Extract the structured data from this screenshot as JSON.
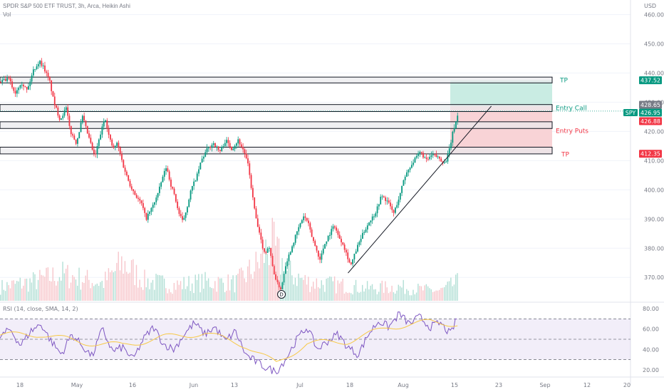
{
  "header": {
    "symbol_line": "SPDR S&P 500 ETF TRUST, 3h, Arca, Heikin Ashi",
    "volume_label": "Vol",
    "currency": "USD"
  },
  "price_axis": {
    "ticks": [
      "460.00",
      "450.00",
      "440.00",
      "430.00",
      "420.00",
      "410.00",
      "400.00",
      "390.00",
      "380.00",
      "370.00"
    ],
    "min": 362,
    "max": 465
  },
  "price_tags": [
    {
      "name": "tp-upper-price-tag",
      "text": "437.52",
      "value": 437.52,
      "color": "#089981"
    },
    {
      "name": "entry-call-price-tag",
      "text": "428.65",
      "value": 428.65,
      "color": "#787b86"
    },
    {
      "name": "current-price-tag",
      "text": "426.95",
      "value": 426.95,
      "color": "#089981"
    },
    {
      "name": "entry-puts-price-tag",
      "text": "426.88",
      "value": 426.88,
      "color": "#f23645"
    },
    {
      "name": "tp-lower-price-tag",
      "text": "412.35",
      "value": 412.35,
      "color": "#f23645"
    }
  ],
  "symbol_tag": {
    "text": "SPY"
  },
  "zones": [
    {
      "low": 436.6,
      "high": 438.6
    },
    {
      "low": 426.8,
      "high": 429.2
    },
    {
      "low": 421.0,
      "high": 423.3
    },
    {
      "low": 412.3,
      "high": 414.6
    }
  ],
  "annotations": {
    "tp_upper": {
      "text": "TP",
      "color": "#089981"
    },
    "entry_call": {
      "text": "Entry Call",
      "color": "#089981"
    },
    "entry_puts": {
      "text": "Entry Puts",
      "color": "#f23645"
    },
    "tp_lower": {
      "text": "TP",
      "color": "#f23645"
    },
    "dividend_marker": {
      "text": "D"
    }
  },
  "position": {
    "entry": 428.65,
    "target": 437.52,
    "stop": 412.35,
    "profit_color": "#c9ece3",
    "loss_color": "#f8d3d6"
  },
  "rsi": {
    "label": "RSI (14, close, SMA, 14, 2)",
    "ticks": [
      "80.00",
      "60.00",
      "40.00",
      "20.00"
    ],
    "min": 15,
    "max": 85,
    "upper_band": 70,
    "lower_band": 30,
    "rsi_color": "#7e57c2",
    "ma_color": "#f7c948"
  },
  "time_axis": {
    "labels": [
      "18",
      "May",
      "16",
      "Jun",
      "13",
      "Jul",
      "18",
      "Aug",
      "15",
      "23",
      "Sep",
      "12",
      "20"
    ]
  },
  "chart_data": {
    "type": "candlestick",
    "style": "Heikin Ashi",
    "interval": "3h",
    "price_path": [
      [
        0,
        437
      ],
      [
        4,
        438
      ],
      [
        7,
        433
      ],
      [
        10,
        437
      ],
      [
        13,
        434
      ],
      [
        16,
        441
      ],
      [
        19,
        444
      ],
      [
        21,
        442
      ],
      [
        24,
        437
      ],
      [
        26,
        430
      ],
      [
        29,
        424
      ],
      [
        32,
        428
      ],
      [
        34,
        420
      ],
      [
        37,
        416
      ],
      [
        40,
        425
      ],
      [
        43,
        418
      ],
      [
        46,
        411
      ],
      [
        48,
        417
      ],
      [
        51,
        425
      ],
      [
        53,
        418
      ],
      [
        55,
        414
      ],
      [
        57,
        416
      ],
      [
        60,
        408
      ],
      [
        63,
        402
      ],
      [
        66,
        398
      ],
      [
        69,
        395
      ],
      [
        71,
        390
      ],
      [
        74,
        394
      ],
      [
        77,
        399
      ],
      [
        79,
        404
      ],
      [
        81,
        408
      ],
      [
        83,
        402
      ],
      [
        85,
        398
      ],
      [
        87,
        392
      ],
      [
        89,
        389
      ],
      [
        91,
        394
      ],
      [
        93,
        400
      ],
      [
        96,
        405
      ],
      [
        98,
        410
      ],
      [
        101,
        414
      ],
      [
        104,
        416
      ],
      [
        107,
        413
      ],
      [
        110,
        417
      ],
      [
        113,
        414
      ],
      [
        116,
        417
      ],
      [
        119,
        413
      ],
      [
        121,
        408
      ],
      [
        123,
        398
      ],
      [
        125,
        389
      ],
      [
        127,
        383
      ],
      [
        129,
        378
      ],
      [
        131,
        381
      ],
      [
        133,
        373
      ],
      [
        135,
        368
      ],
      [
        137,
        366
      ],
      [
        139,
        374
      ],
      [
        142,
        380
      ],
      [
        145,
        386
      ],
      [
        148,
        391
      ],
      [
        150,
        389
      ],
      [
        152,
        384
      ],
      [
        154,
        380
      ],
      [
        156,
        376
      ],
      [
        158,
        381
      ],
      [
        160,
        384
      ],
      [
        163,
        388
      ],
      [
        165,
        384
      ],
      [
        167,
        382
      ],
      [
        169,
        378
      ],
      [
        171,
        374
      ],
      [
        174,
        380
      ],
      [
        177,
        385
      ],
      [
        180,
        389
      ],
      [
        183,
        392
      ],
      [
        186,
        398
      ],
      [
        189,
        396
      ],
      [
        192,
        392
      ],
      [
        195,
        398
      ],
      [
        197,
        404
      ],
      [
        200,
        408
      ],
      [
        202,
        410
      ],
      [
        205,
        413
      ],
      [
        208,
        410
      ],
      [
        211,
        412
      ],
      [
        214,
        411
      ],
      [
        217,
        409
      ],
      [
        219,
        413
      ],
      [
        221,
        420
      ],
      [
        223,
        425
      ],
      [
        224,
        426.95
      ]
    ],
    "x_start": 0,
    "x_end": 224,
    "volume_path": [
      [
        0,
        0.22
      ],
      [
        15,
        0.3
      ],
      [
        30,
        0.42
      ],
      [
        40,
        0.35
      ],
      [
        50,
        0.28
      ],
      [
        60,
        0.6
      ],
      [
        70,
        0.32
      ],
      [
        85,
        0.25
      ],
      [
        100,
        0.3
      ],
      [
        115,
        0.28
      ],
      [
        125,
        0.55
      ],
      [
        132,
        0.9
      ],
      [
        140,
        0.45
      ],
      [
        150,
        0.3
      ],
      [
        165,
        0.25
      ],
      [
        180,
        0.2
      ],
      [
        195,
        0.22
      ],
      [
        205,
        0.18
      ],
      [
        215,
        0.16
      ],
      [
        224,
        0.3
      ]
    ],
    "rsi_path": [
      [
        0,
        52
      ],
      [
        5,
        60
      ],
      [
        10,
        44
      ],
      [
        15,
        58
      ],
      [
        20,
        65
      ],
      [
        25,
        48
      ],
      [
        30,
        35
      ],
      [
        35,
        55
      ],
      [
        40,
        44
      ],
      [
        45,
        33
      ],
      [
        50,
        60
      ],
      [
        55,
        38
      ],
      [
        60,
        42
      ],
      [
        65,
        30
      ],
      [
        70,
        50
      ],
      [
        75,
        62
      ],
      [
        80,
        45
      ],
      [
        85,
        40
      ],
      [
        90,
        55
      ],
      [
        95,
        66
      ],
      [
        100,
        55
      ],
      [
        105,
        62
      ],
      [
        110,
        48
      ],
      [
        115,
        58
      ],
      [
        120,
        35
      ],
      [
        125,
        28
      ],
      [
        130,
        22
      ],
      [
        135,
        18
      ],
      [
        140,
        32
      ],
      [
        145,
        50
      ],
      [
        150,
        62
      ],
      [
        155,
        40
      ],
      [
        160,
        48
      ],
      [
        165,
        55
      ],
      [
        170,
        42
      ],
      [
        175,
        35
      ],
      [
        180,
        55
      ],
      [
        185,
        68
      ],
      [
        190,
        62
      ],
      [
        195,
        75
      ],
      [
        200,
        65
      ],
      [
        205,
        72
      ],
      [
        210,
        62
      ],
      [
        215,
        66
      ],
      [
        220,
        55
      ],
      [
        224,
        74
      ]
    ],
    "rsi_ma_path": [
      [
        0,
        54
      ],
      [
        20,
        55
      ],
      [
        40,
        47
      ],
      [
        60,
        44
      ],
      [
        80,
        52
      ],
      [
        100,
        56
      ],
      [
        120,
        44
      ],
      [
        135,
        26
      ],
      [
        150,
        46
      ],
      [
        170,
        48
      ],
      [
        190,
        62
      ],
      [
        210,
        67
      ],
      [
        224,
        65
      ]
    ],
    "trendline": [
      [
        170,
        371.5
      ],
      [
        240,
        428.65
      ]
    ],
    "xlim": [
      0,
      308
    ]
  }
}
